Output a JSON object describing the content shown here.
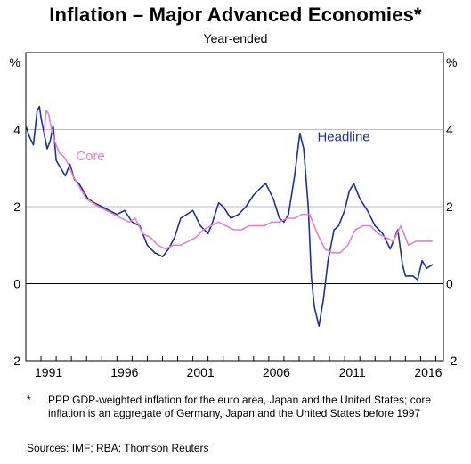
{
  "title": "Inflation – Major Advanced Economies*",
  "subtitle": "Year-ended",
  "footnote_mark": "*",
  "footnote": "PPP GDP-weighted inflation for the euro area, Japan and the United States; core inflation is an aggregate of Germany, Japan and the United States before 1997",
  "sources": "Sources:  IMF; RBA; Thomson Reuters",
  "chart_data": {
    "type": "line",
    "title": "Inflation – Major Advanced Economies*",
    "subtitle": "Year-ended",
    "ylabel_left": "%",
    "ylabel_right": "%",
    "xlim": [
      1990.0,
      2017.5
    ],
    "ylim": [
      -2,
      6
    ],
    "yticks": [
      -2,
      0,
      2,
      4
    ],
    "xticks": [
      1991,
      1996,
      2001,
      2006,
      2011,
      2016
    ],
    "grid": "horizontal",
    "colors": {
      "Headline": "#1f2f9c",
      "Core": "#e57fd0"
    },
    "series": [
      {
        "name": "Headline",
        "points": [
          [
            1990.0,
            4.1
          ],
          [
            1990.25,
            3.8
          ],
          [
            1990.5,
            3.6
          ],
          [
            1990.75,
            4.5
          ],
          [
            1990.9,
            4.6
          ],
          [
            1991.0,
            4.3
          ],
          [
            1991.2,
            3.9
          ],
          [
            1991.4,
            3.5
          ],
          [
            1991.6,
            3.7
          ],
          [
            1991.8,
            4.1
          ],
          [
            1992.0,
            3.2
          ],
          [
            1992.3,
            3.0
          ],
          [
            1992.6,
            2.8
          ],
          [
            1992.9,
            3.1
          ],
          [
            1993.2,
            2.7
          ],
          [
            1993.5,
            2.6
          ],
          [
            1993.8,
            2.4
          ],
          [
            1994.1,
            2.2
          ],
          [
            1994.5,
            2.1
          ],
          [
            1995.0,
            2.0
          ],
          [
            1995.5,
            1.9
          ],
          [
            1996.0,
            1.8
          ],
          [
            1996.5,
            1.9
          ],
          [
            1997.0,
            1.6
          ],
          [
            1997.5,
            1.5
          ],
          [
            1998.0,
            1.0
          ],
          [
            1998.5,
            0.8
          ],
          [
            1999.0,
            0.7
          ],
          [
            1999.4,
            0.9
          ],
          [
            1999.8,
            1.2
          ],
          [
            2000.2,
            1.7
          ],
          [
            2000.6,
            1.8
          ],
          [
            2001.0,
            1.9
          ],
          [
            2001.5,
            1.5
          ],
          [
            2002.0,
            1.3
          ],
          [
            2002.3,
            1.6
          ],
          [
            2002.7,
            2.1
          ],
          [
            2003.0,
            2.0
          ],
          [
            2003.5,
            1.7
          ],
          [
            2004.0,
            1.8
          ],
          [
            2004.5,
            2.0
          ],
          [
            2005.0,
            2.3
          ],
          [
            2005.5,
            2.5
          ],
          [
            2005.8,
            2.6
          ],
          [
            2006.3,
            2.2
          ],
          [
            2006.7,
            1.7
          ],
          [
            2007.0,
            1.6
          ],
          [
            2007.3,
            1.8
          ],
          [
            2007.7,
            2.8
          ],
          [
            2007.95,
            3.6
          ],
          [
            2008.05,
            3.9
          ],
          [
            2008.3,
            3.5
          ],
          [
            2008.6,
            2.0
          ],
          [
            2008.8,
            0.2
          ],
          [
            2009.0,
            -0.6
          ],
          [
            2009.3,
            -1.1
          ],
          [
            2009.6,
            -0.4
          ],
          [
            2009.9,
            0.6
          ],
          [
            2010.3,
            1.4
          ],
          [
            2010.6,
            1.5
          ],
          [
            2011.0,
            1.9
          ],
          [
            2011.3,
            2.4
          ],
          [
            2011.6,
            2.6
          ],
          [
            2012.0,
            2.2
          ],
          [
            2012.5,
            1.9
          ],
          [
            2013.0,
            1.5
          ],
          [
            2013.5,
            1.3
          ],
          [
            2014.0,
            0.9
          ],
          [
            2014.5,
            1.4
          ],
          [
            2014.8,
            0.5
          ],
          [
            2015.0,
            0.2
          ],
          [
            2015.5,
            0.2
          ],
          [
            2015.8,
            0.1
          ],
          [
            2016.1,
            0.6
          ],
          [
            2016.4,
            0.4
          ],
          [
            2016.8,
            0.5
          ]
        ]
      },
      {
        "name": "Core",
        "points": [
          [
            1991.2,
            3.9
          ],
          [
            1991.35,
            4.5
          ],
          [
            1991.5,
            4.4
          ],
          [
            1991.7,
            4.0
          ],
          [
            1991.9,
            3.7
          ],
          [
            1992.2,
            3.4
          ],
          [
            1992.5,
            3.3
          ],
          [
            1992.8,
            3.1
          ],
          [
            1993.1,
            2.8
          ],
          [
            1993.4,
            2.6
          ],
          [
            1993.7,
            2.4
          ],
          [
            1994.0,
            2.2
          ],
          [
            1994.4,
            2.1
          ],
          [
            1994.8,
            2.0
          ],
          [
            1995.3,
            1.9
          ],
          [
            1995.8,
            1.8
          ],
          [
            1996.3,
            1.7
          ],
          [
            1996.8,
            1.6
          ],
          [
            1997.2,
            1.7
          ],
          [
            1997.7,
            1.3
          ],
          [
            1998.2,
            1.2
          ],
          [
            1998.7,
            1.0
          ],
          [
            1999.2,
            0.9
          ],
          [
            1999.7,
            1.0
          ],
          [
            2000.2,
            1.0
          ],
          [
            2000.7,
            1.1
          ],
          [
            2001.2,
            1.2
          ],
          [
            2001.7,
            1.4
          ],
          [
            2002.2,
            1.5
          ],
          [
            2002.7,
            1.6
          ],
          [
            2003.2,
            1.5
          ],
          [
            2003.7,
            1.4
          ],
          [
            2004.2,
            1.4
          ],
          [
            2004.7,
            1.5
          ],
          [
            2005.2,
            1.5
          ],
          [
            2005.7,
            1.5
          ],
          [
            2006.2,
            1.6
          ],
          [
            2006.7,
            1.6
          ],
          [
            2007.2,
            1.7
          ],
          [
            2007.7,
            1.7
          ],
          [
            2008.2,
            1.8
          ],
          [
            2008.7,
            1.8
          ],
          [
            2009.2,
            1.3
          ],
          [
            2009.7,
            0.9
          ],
          [
            2010.2,
            0.8
          ],
          [
            2010.7,
            0.8
          ],
          [
            2011.2,
            1.0
          ],
          [
            2011.7,
            1.4
          ],
          [
            2012.2,
            1.5
          ],
          [
            2012.7,
            1.5
          ],
          [
            2013.2,
            1.3
          ],
          [
            2013.7,
            1.2
          ],
          [
            2014.2,
            1.1
          ],
          [
            2014.7,
            1.5
          ],
          [
            2015.2,
            1.0
          ],
          [
            2015.7,
            1.1
          ],
          [
            2016.2,
            1.1
          ],
          [
            2016.8,
            1.1
          ]
        ]
      }
    ],
    "annotations": [
      {
        "text": "Headline",
        "x": 2009.2,
        "y": 3.7
      },
      {
        "text": "Core",
        "x": 1993.3,
        "y": 3.2
      }
    ]
  }
}
